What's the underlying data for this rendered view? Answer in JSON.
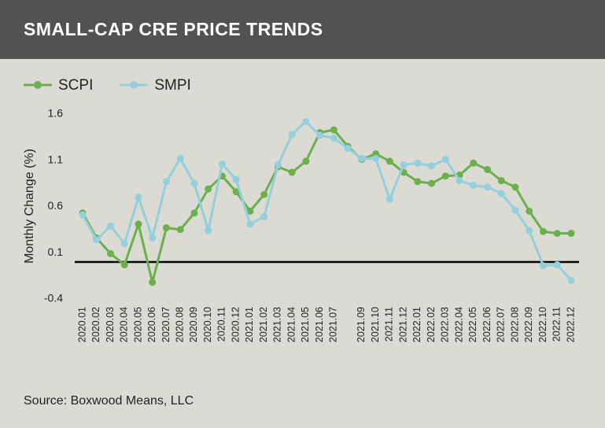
{
  "header": {
    "title": "SMALL-CAP CRE PRICE TRENDS"
  },
  "chart_data": {
    "type": "line",
    "y_label": "Monthly Change (%)",
    "categories": [
      "2020.01",
      "2020.02",
      "2020.03",
      "2020.04",
      "2020.05",
      "2020.06",
      "2020.07",
      "2020.08",
      "2020.09",
      "2020.10",
      "2020.11",
      "2020.12",
      "2021.01",
      "2021.02",
      "2021.03",
      "2021.04",
      "2021.05",
      "2021.06",
      "2021.07",
      null,
      "2021.09",
      "2021.10",
      "2021.11",
      "2021.12",
      "2022.01",
      "2022.02",
      "2022.03",
      "2022.04",
      "2022.05",
      "2022.06",
      "2022.07",
      "2022.08",
      "2022.09",
      "2022.10",
      "2022.11",
      "2022.12"
    ],
    "series": [
      {
        "name": "SCPI",
        "color": "#6ab04c",
        "values": [
          0.53,
          0.26,
          0.09,
          -0.03,
          0.41,
          -0.22,
          0.37,
          0.35,
          0.53,
          0.79,
          0.93,
          0.76,
          0.55,
          0.73,
          1.03,
          0.97,
          1.09,
          1.4,
          1.43,
          1.25,
          1.11,
          1.17,
          1.09,
          0.97,
          0.87,
          0.85,
          0.93,
          0.94,
          1.07,
          1.0,
          0.88,
          0.81,
          0.55,
          0.33,
          0.31,
          0.31
        ]
      },
      {
        "name": "SMPI",
        "color": "#93cfdc",
        "values": [
          0.51,
          0.24,
          0.39,
          0.2,
          0.7,
          0.26,
          0.87,
          1.12,
          0.85,
          0.34,
          1.06,
          0.89,
          0.41,
          0.49,
          1.05,
          1.38,
          1.52,
          1.37,
          1.34,
          1.23,
          1.12,
          1.12,
          0.68,
          1.05,
          1.07,
          1.04,
          1.11,
          0.88,
          0.83,
          0.81,
          0.74,
          0.56,
          0.34,
          -0.04,
          -0.03,
          -0.2
        ]
      }
    ],
    "ylim": [
      -0.4,
      1.6
    ],
    "yticks": [
      -0.4,
      0.1,
      0.6,
      1.1,
      1.6
    ],
    "reference_line": 0,
    "source": "Source: Boxwood Means, LLC"
  }
}
